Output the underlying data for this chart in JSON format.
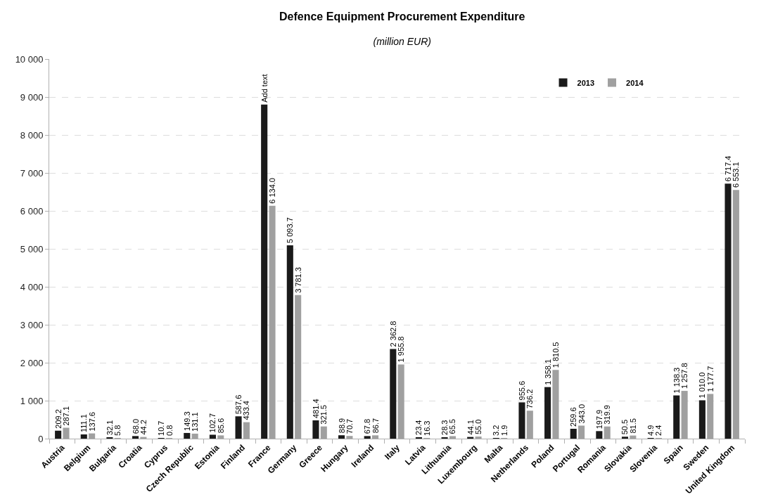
{
  "chart_data": {
    "type": "bar",
    "title": "Defence Equipment Procurement Expenditure",
    "subtitle": "(million EUR)",
    "categories": [
      "Austria",
      "Belgium",
      "Bulgaria",
      "Croatia",
      "Cyprus",
      "Czech Republic",
      "Estonia",
      "Finland",
      "France",
      "Germany",
      "Greece",
      "Hungary",
      "Ireland",
      "Italy",
      "Latvia",
      "Lithuania",
      "Luxembourg",
      "Malta",
      "Netherlands",
      "Poland",
      "Portugal",
      "Romania",
      "Slovakia",
      "Slovenia",
      "Spain",
      "Sweden",
      "United Kingdom"
    ],
    "series": [
      {
        "name": "2013",
        "color": "#1a1a1a",
        "values": [
          209.2,
          111.1,
          32.1,
          68.0,
          10.7,
          149.3,
          102.7,
          587.6,
          8800,
          5093.7,
          481.4,
          88.9,
          67.8,
          2362.8,
          23.4,
          28.3,
          44.1,
          3.2,
          955.6,
          1358.1,
          259.6,
          197.9,
          50.5,
          4.9,
          1138.3,
          1010.0,
          6717.4
        ],
        "value_labels": [
          "209.2",
          "111.1",
          "32.1",
          "68.0",
          "10.7",
          "149.3",
          "102.7",
          "587.6",
          "Add text",
          "5 093.7",
          "481.4",
          "88.9",
          "67.8",
          "2 362.8",
          "23.4",
          "28.3",
          "44.1",
          "3.2",
          "955.6",
          "1 358.1",
          "259.6",
          "197.9",
          "50.5",
          "4.9",
          "1 138.3",
          "1 010.0",
          "6 717.4"
        ]
      },
      {
        "name": "2014",
        "color": "#a0a0a0",
        "values": [
          287.1,
          137.6,
          5.8,
          44.2,
          0.8,
          131.1,
          85.6,
          433.4,
          6134.0,
          3781.3,
          321.5,
          70.7,
          86.7,
          1955.8,
          16.3,
          65.5,
          55.0,
          1.9,
          736.2,
          1810.5,
          343.0,
          319.9,
          81.5,
          2.4,
          1257.8,
          1177.7,
          6553.1
        ],
        "value_labels": [
          "287.1",
          "137.6",
          "5.8",
          "44.2",
          "0.8",
          "131.1",
          "85.6",
          "433.4",
          "6 134.0",
          "3 781.3",
          "321.5",
          "70.7",
          "86.7",
          "1 955.8",
          "16.3",
          "65.5",
          "55.0",
          "1.9",
          "736.2",
          "1 810.5",
          "343.0",
          "319.9",
          "81.5",
          "2.4",
          "1 257.8",
          "1 177.7",
          "6 553.1"
        ]
      }
    ],
    "ylim": [
      0,
      10000
    ],
    "yticks": [
      0,
      {
        "value": 1000,
        "label": "1 000"
      },
      {
        "value": 2000,
        "label": "2 000"
      },
      {
        "value": 3000,
        "label": "3 000"
      },
      {
        "value": 4000,
        "label": "4 000"
      },
      {
        "value": 5000,
        "label": "5 000"
      },
      {
        "value": 6000,
        "label": "6 000"
      },
      {
        "value": 7000,
        "label": "7 000"
      },
      {
        "value": 8000,
        "label": "8 000"
      },
      {
        "value": 9000,
        "label": "9 000"
      },
      {
        "value": 10000,
        "label": "10 000"
      }
    ],
    "grid": "y",
    "legend": "top right"
  }
}
